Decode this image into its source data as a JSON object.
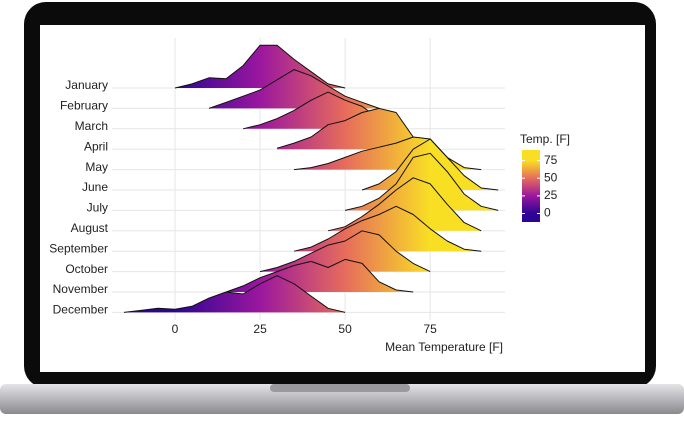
{
  "chart_data": {
    "type": "ridgeline",
    "xlabel": "Mean Temperature [F]",
    "categories": [
      "January",
      "February",
      "March",
      "April",
      "May",
      "June",
      "July",
      "August",
      "September",
      "October",
      "November",
      "December"
    ],
    "x": [
      -15,
      -10,
      -5,
      0,
      5,
      10,
      15,
      20,
      25,
      30,
      35,
      40,
      45,
      50,
      55,
      60,
      65,
      70,
      75,
      80,
      85,
      90,
      95
    ],
    "series": [
      {
        "name": "January",
        "values": [
          null,
          null,
          null,
          0,
          0.2,
          0.5,
          0.45,
          1.1,
          2.1,
          2.1,
          1.4,
          0.8,
          0.2,
          0,
          null,
          null,
          null,
          null,
          null,
          null,
          null,
          null,
          null
        ]
      },
      {
        "name": "February",
        "values": [
          null,
          null,
          null,
          null,
          null,
          0,
          0.3,
          0.6,
          0.9,
          1.4,
          1.9,
          1.6,
          1.1,
          0.6,
          0.3,
          0,
          null,
          null,
          null,
          null,
          null,
          null,
          null
        ]
      },
      {
        "name": "March",
        "values": [
          null,
          null,
          null,
          null,
          null,
          null,
          null,
          0,
          0.2,
          0.5,
          0.9,
          1.4,
          1.8,
          1.4,
          1.1,
          0.5,
          0,
          null,
          null,
          null,
          null,
          null,
          null
        ]
      },
      {
        "name": "April",
        "values": [
          null,
          null,
          null,
          null,
          null,
          null,
          null,
          null,
          null,
          0.05,
          0.3,
          0.6,
          1.2,
          1.4,
          1.8,
          2.0,
          1.8,
          0.6,
          0,
          null,
          null,
          null,
          null
        ]
      },
      {
        "name": "May",
        "values": [
          null,
          null,
          null,
          null,
          null,
          null,
          null,
          null,
          null,
          null,
          0,
          0.1,
          0.3,
          0.6,
          0.9,
          1.1,
          1.3,
          1.6,
          1.5,
          0.6,
          0.1,
          0,
          null
        ]
      },
      {
        "name": "June",
        "values": [
          null,
          null,
          null,
          null,
          null,
          null,
          null,
          null,
          null,
          null,
          null,
          null,
          null,
          null,
          0,
          0.3,
          0.9,
          2.0,
          2.5,
          1.6,
          0.7,
          0.1,
          0
        ]
      },
      {
        "name": "July",
        "values": [
          null,
          null,
          null,
          null,
          null,
          null,
          null,
          null,
          null,
          null,
          null,
          null,
          null,
          0,
          0.2,
          0.6,
          1.3,
          2.6,
          2.8,
          1.9,
          0.8,
          0.2,
          0
        ]
      },
      {
        "name": "August",
        "values": [
          null,
          null,
          null,
          null,
          null,
          null,
          null,
          null,
          null,
          null,
          null,
          null,
          0,
          0.2,
          0.7,
          1.3,
          2.0,
          2.6,
          2.3,
          1.3,
          0.4,
          0,
          null
        ]
      },
      {
        "name": "September",
        "values": [
          null,
          null,
          null,
          null,
          null,
          null,
          null,
          null,
          null,
          null,
          0,
          0.2,
          0.6,
          1.1,
          1.5,
          1.8,
          2.2,
          1.8,
          1.1,
          0.5,
          0.1,
          0,
          null
        ]
      },
      {
        "name": "October",
        "values": [
          null,
          null,
          null,
          null,
          null,
          null,
          null,
          null,
          0,
          0.2,
          0.5,
          0.9,
          1.3,
          1.5,
          2.0,
          1.8,
          1.0,
          0.4,
          0,
          null,
          null,
          null,
          null
        ]
      },
      {
        "name": "November",
        "values": [
          null,
          null,
          null,
          null,
          null,
          null,
          0,
          0.3,
          0.7,
          1.0,
          1.3,
          1.5,
          1.2,
          1.6,
          1.4,
          0.5,
          0.1,
          0,
          null,
          null,
          null,
          null,
          null
        ]
      },
      {
        "name": "December",
        "values": [
          0,
          0.1,
          0.2,
          0.15,
          0.3,
          0.7,
          1.0,
          0.9,
          1.4,
          1.8,
          1.4,
          0.8,
          0.2,
          0,
          null,
          null,
          null,
          null,
          null,
          null,
          null,
          null,
          null
        ]
      }
    ],
    "xlim": [
      -15,
      97
    ],
    "xticks": [
      0,
      25,
      50,
      75
    ],
    "grid": true,
    "legend": {
      "title": "Temp. [F]",
      "ticks": [
        0,
        25,
        50,
        75
      ],
      "colors": [
        "#2c0594",
        "#9b179e",
        "#e66c5c",
        "#f9df24"
      ],
      "range": [
        -12,
        90
      ]
    }
  }
}
